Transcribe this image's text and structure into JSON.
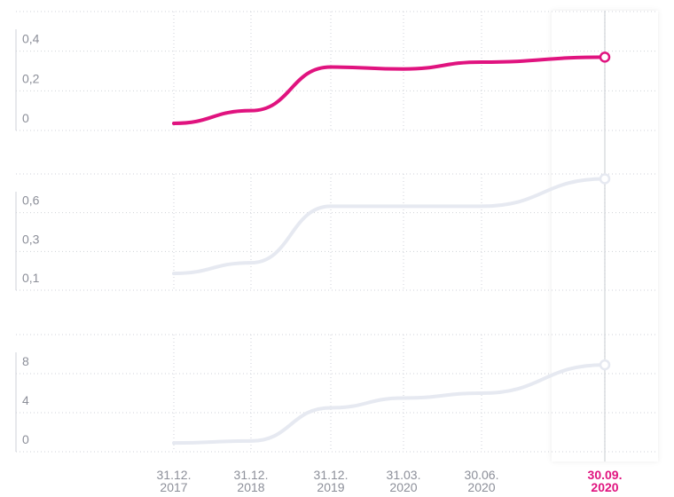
{
  "chart_data": [
    {
      "type": "line",
      "ylim": [
        0,
        0.6
      ],
      "yticks": [
        {
          "value": 0,
          "label": "0"
        },
        {
          "value": 0.2,
          "label": "0,2"
        },
        {
          "value": 0.4,
          "label": "0,4"
        }
      ],
      "series": [
        {
          "color": "#e0137f",
          "values": [
            0.036,
            0.1,
            0.32,
            0.31,
            0.345,
            0.37
          ]
        }
      ],
      "highlight_index": 5,
      "highlight_color": "#e0137f"
    },
    {
      "type": "line",
      "ylim": [
        0.1,
        0.82
      ],
      "yticks": [
        {
          "value": 0.1,
          "label": "0,1"
        },
        {
          "value": 0.34,
          "label": "0,3"
        },
        {
          "value": 0.58,
          "label": "0,6"
        }
      ],
      "series": [
        {
          "color": "#e6e9f1",
          "values": [
            0.204,
            0.27,
            0.62,
            0.62,
            0.62,
            0.79
          ]
        }
      ],
      "highlight_index": 5,
      "highlight_color": "#e6e9f1"
    },
    {
      "type": "line",
      "ylim": [
        0,
        12
      ],
      "yticks": [
        0,
        4,
        8
      ],
      "categories": [
        "31.12.\n2017",
        "31.12.\n2018",
        "31.12.\n2019",
        "31.03.\n2020",
        "30.06.\n2020",
        "30.09.\n2020"
      ],
      "series": [
        {
          "color": "#e6e9f1",
          "values": [
            0.9,
            1.1,
            4.5,
            5.5,
            6,
            8.9
          ]
        }
      ],
      "highlight_index": 5,
      "highlight_color": "#e0137f"
    }
  ]
}
